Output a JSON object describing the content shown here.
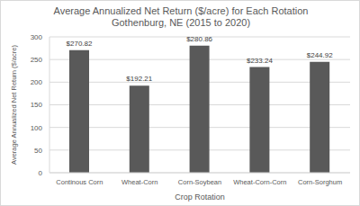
{
  "chart_data": {
    "type": "bar",
    "title": "Average Annualized Net Return ($/acre) for Each Rotation",
    "subtitle": "Gothenburg, NE (2015 to 2020)",
    "x_label": "Crop Rotation",
    "y_label": "Average Annualized Net Return ($/acre)",
    "categories": [
      "Continous Corn",
      "Wheat-Corn",
      "Corn-Soybean",
      "Wheat-Corn-Corn",
      "Corn-Sorghum"
    ],
    "values": [
      270.82,
      192.21,
      280.86,
      233.24,
      244.92
    ],
    "value_labels": [
      "$270.82",
      "$192.21",
      "$280.86",
      "$233.24",
      "$244.92"
    ],
    "color": "#595959",
    "ylim": [
      0,
      300
    ],
    "yticks": [
      0,
      50,
      100,
      150,
      200,
      250,
      300
    ],
    "grid": true,
    "data_labels": true
  }
}
